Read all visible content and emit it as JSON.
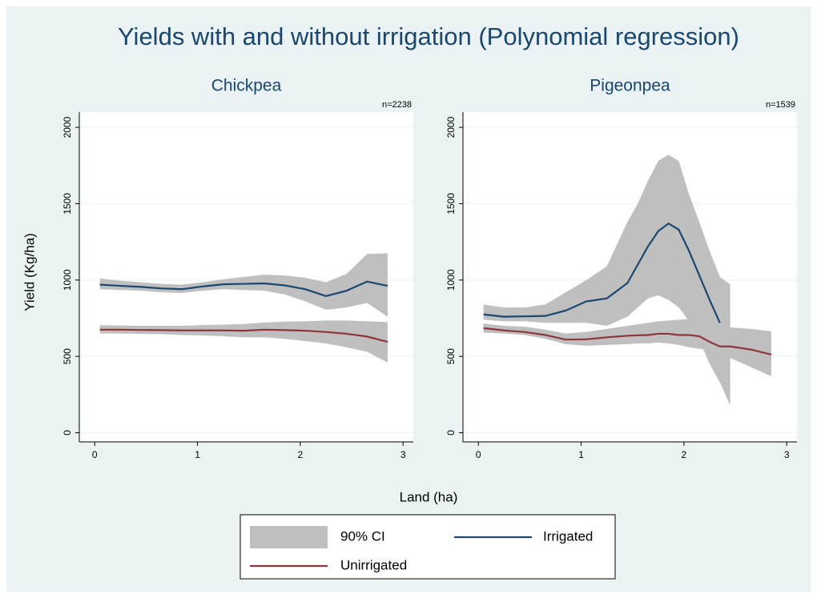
{
  "title": "Yields with and without irrigation (Polynomial regression)",
  "xlabel": "Land (ha)",
  "ylabel": "Yield (Kg/ha)",
  "ci_name": "90% CI",
  "ci_color": "#bfbfbf",
  "chart_data": [
    {
      "type": "line",
      "title": "Chickpea",
      "note": "n=2238",
      "x": [
        0.05,
        0.25,
        0.45,
        0.65,
        0.85,
        1.05,
        1.25,
        1.45,
        1.65,
        1.85,
        2.05,
        2.25,
        2.45,
        2.65,
        2.85
      ],
      "xlim": [
        -0.15,
        3.1
      ],
      "xticks": [
        0,
        1,
        2,
        3
      ],
      "ylim": [
        -60,
        2100
      ],
      "yticks": [
        0,
        500,
        1000,
        1500,
        2000
      ],
      "grid": true,
      "series": [
        {
          "name": "Irrigated",
          "color": "#1a476f",
          "values": [
            970,
            962,
            955,
            945,
            940,
            958,
            972,
            975,
            978,
            965,
            940,
            895,
            930,
            990,
            962
          ],
          "lower": [
            940,
            935,
            930,
            920,
            915,
            930,
            940,
            935,
            930,
            905,
            860,
            805,
            820,
            850,
            760
          ],
          "upper": [
            1010,
            995,
            985,
            975,
            970,
            985,
            1005,
            1020,
            1035,
            1030,
            1015,
            985,
            1040,
            1170,
            1175
          ]
        },
        {
          "name": "Unirrigated",
          "color": "#90353b",
          "values": [
            675,
            675,
            673,
            672,
            670,
            670,
            670,
            668,
            675,
            672,
            668,
            660,
            648,
            630,
            595
          ],
          "lower": [
            650,
            650,
            648,
            645,
            640,
            637,
            632,
            625,
            625,
            615,
            600,
            585,
            560,
            530,
            460
          ],
          "upper": [
            705,
            702,
            700,
            700,
            700,
            705,
            708,
            712,
            722,
            728,
            730,
            735,
            735,
            730,
            725
          ]
        }
      ]
    },
    {
      "type": "line",
      "title": "Pigeonpea",
      "note": "n=1539",
      "x": [
        0.05,
        0.25,
        0.45,
        0.65,
        0.85,
        1.05,
        1.25,
        1.45,
        1.55,
        1.65,
        1.75,
        1.85,
        1.95,
        2.05,
        2.15,
        2.25,
        2.35,
        2.45,
        2.65,
        2.85
      ],
      "xlim": [
        -0.15,
        3.1
      ],
      "xticks": [
        0,
        1,
        2,
        3
      ],
      "ylim": [
        -60,
        2100
      ],
      "yticks": [
        0,
        500,
        1000,
        1500,
        2000
      ],
      "grid": true,
      "series": [
        {
          "name": "Irrigated",
          "color": "#1a476f",
          "values": [
            775,
            760,
            762,
            765,
            800,
            860,
            880,
            980,
            1100,
            1220,
            1320,
            1370,
            1330,
            1190,
            1030,
            870,
            720,
            null,
            null,
            null
          ],
          "lower": [
            740,
            730,
            730,
            720,
            720,
            720,
            700,
            760,
            820,
            880,
            900,
            870,
            820,
            730,
            610,
            450,
            330,
            180,
            null,
            null
          ],
          "upper": [
            840,
            820,
            820,
            840,
            920,
            1000,
            1090,
            1380,
            1500,
            1650,
            1780,
            1820,
            1780,
            1560,
            1380,
            1190,
            1020,
            970,
            null,
            null
          ]
        },
        {
          "name": "Unirrigated",
          "color": "#90353b",
          "values": [
            685,
            670,
            660,
            640,
            610,
            612,
            625,
            635,
            638,
            640,
            648,
            648,
            640,
            640,
            632,
            595,
            565,
            565,
            545,
            512
          ],
          "lower": [
            655,
            650,
            640,
            615,
            580,
            570,
            575,
            580,
            585,
            585,
            590,
            585,
            575,
            560,
            550,
            540,
            520,
            490,
            430,
            370
          ],
          "upper": [
            715,
            700,
            695,
            675,
            650,
            660,
            680,
            700,
            710,
            720,
            730,
            735,
            740,
            745,
            745,
            740,
            720,
            690,
            680,
            665
          ]
        }
      ]
    }
  ]
}
